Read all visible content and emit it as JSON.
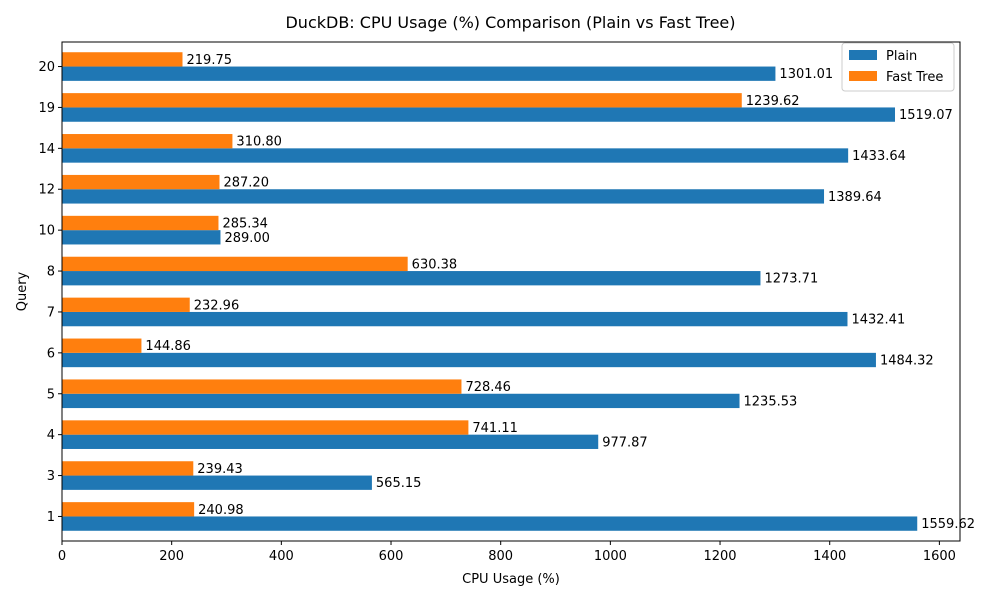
{
  "chart_data": {
    "type": "bar",
    "orientation": "horizontal",
    "title": "DuckDB: CPU Usage (%) Comparison (Plain vs Fast Tree)",
    "xlabel": "CPU Usage (%)",
    "ylabel": "Query",
    "categories": [
      "1",
      "3",
      "4",
      "5",
      "6",
      "7",
      "8",
      "10",
      "12",
      "14",
      "19",
      "20"
    ],
    "series": [
      {
        "name": "Plain",
        "color": "#1f77b4",
        "values": [
          1559.62,
          565.15,
          977.87,
          1235.53,
          1484.32,
          1432.41,
          1273.71,
          289.0,
          1389.64,
          1433.64,
          1519.07,
          1301.01
        ],
        "labels": [
          "1559.62",
          "565.15",
          "977.87",
          "1235.53",
          "1484.32",
          "1432.41",
          "1273.71",
          "289.00",
          "1389.64",
          "1433.64",
          "1519.07",
          "1301.01"
        ]
      },
      {
        "name": "Fast Tree",
        "color": "#ff7f0e",
        "values": [
          240.98,
          239.43,
          741.11,
          728.46,
          144.86,
          232.96,
          630.38,
          285.34,
          287.2,
          310.8,
          1239.62,
          219.75
        ],
        "labels": [
          "240.98",
          "239.43",
          "741.11",
          "728.46",
          "144.86",
          "232.96",
          "630.38",
          "285.34",
          "287.20",
          "310.80",
          "1239.62",
          "219.75"
        ]
      }
    ],
    "xlim": [
      0,
      1637.6
    ],
    "xticks": [
      0,
      200,
      400,
      600,
      800,
      1000,
      1200,
      1400,
      1600
    ],
    "xtick_labels": [
      "0",
      "200",
      "400",
      "600",
      "800",
      "1000",
      "1200",
      "1400",
      "1600"
    ],
    "grid": false,
    "legend_position": "top-right"
  }
}
